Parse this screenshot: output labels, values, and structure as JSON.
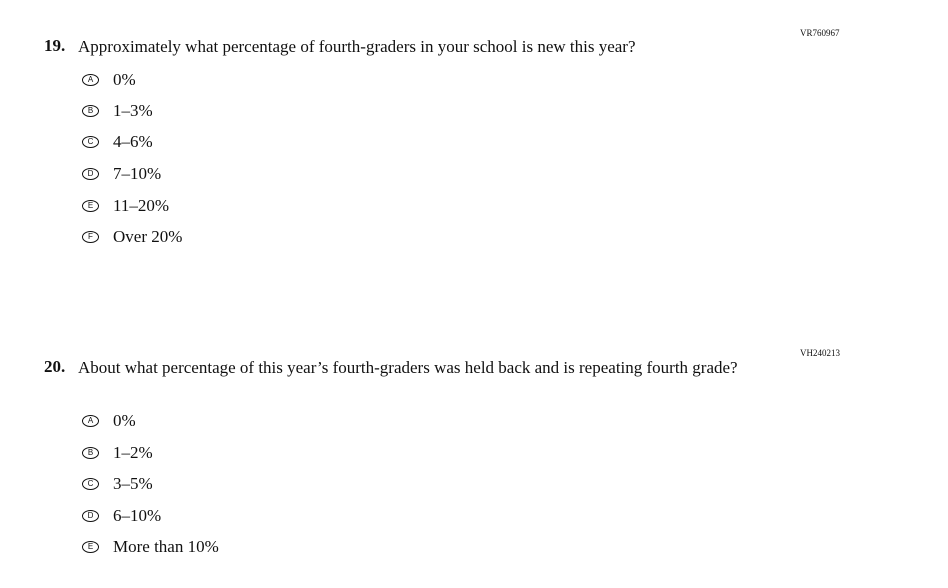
{
  "questions": [
    {
      "code": "VR760967",
      "number": "19.",
      "text": "Approximately what percentage of fourth-graders in your school is new this year?",
      "options": [
        {
          "letter": "A",
          "label": "0%"
        },
        {
          "letter": "B",
          "label": "1–3%"
        },
        {
          "letter": "C",
          "label": "4–6%"
        },
        {
          "letter": "D",
          "label": "7–10%"
        },
        {
          "letter": "E",
          "label": "11–20%"
        },
        {
          "letter": "F",
          "label": "Over 20%"
        }
      ]
    },
    {
      "code": "VH240213",
      "number": "20.",
      "text": "About what percentage of this year’s fourth-graders was held back and is repeating fourth grade?",
      "options": [
        {
          "letter": "A",
          "label": "0%"
        },
        {
          "letter": "B",
          "label": "1–2%"
        },
        {
          "letter": "C",
          "label": "3–5%"
        },
        {
          "letter": "D",
          "label": "6–10%"
        },
        {
          "letter": "E",
          "label": "More than 10%"
        }
      ]
    }
  ]
}
